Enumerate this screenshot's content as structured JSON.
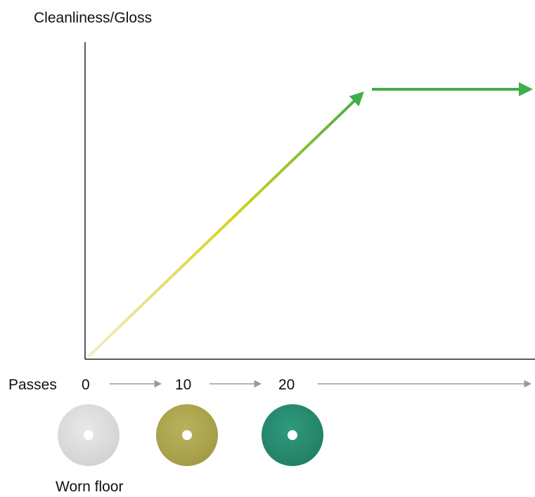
{
  "diagram": {
    "y_axis_label": "Cleanliness/Gloss",
    "passes_label": "Passes",
    "pass_values": [
      "0",
      "10",
      "20"
    ],
    "caption": "Worn floor",
    "colors": {
      "curve_start": "#f3eccb",
      "curve_mid": "#d8d21a",
      "curve_end": "#3fae4a",
      "axis": "#222222",
      "pass_arrow": "#999999",
      "pad_white": "#d9d9d9",
      "pad_green": "#a8a14a",
      "pad_teal": "#25856a"
    },
    "pads": [
      {
        "name": "white-pad",
        "color": "#d9d9d9"
      },
      {
        "name": "green-pad",
        "color": "#a8a14a"
      },
      {
        "name": "teal-pad",
        "color": "#25856a"
      }
    ]
  }
}
